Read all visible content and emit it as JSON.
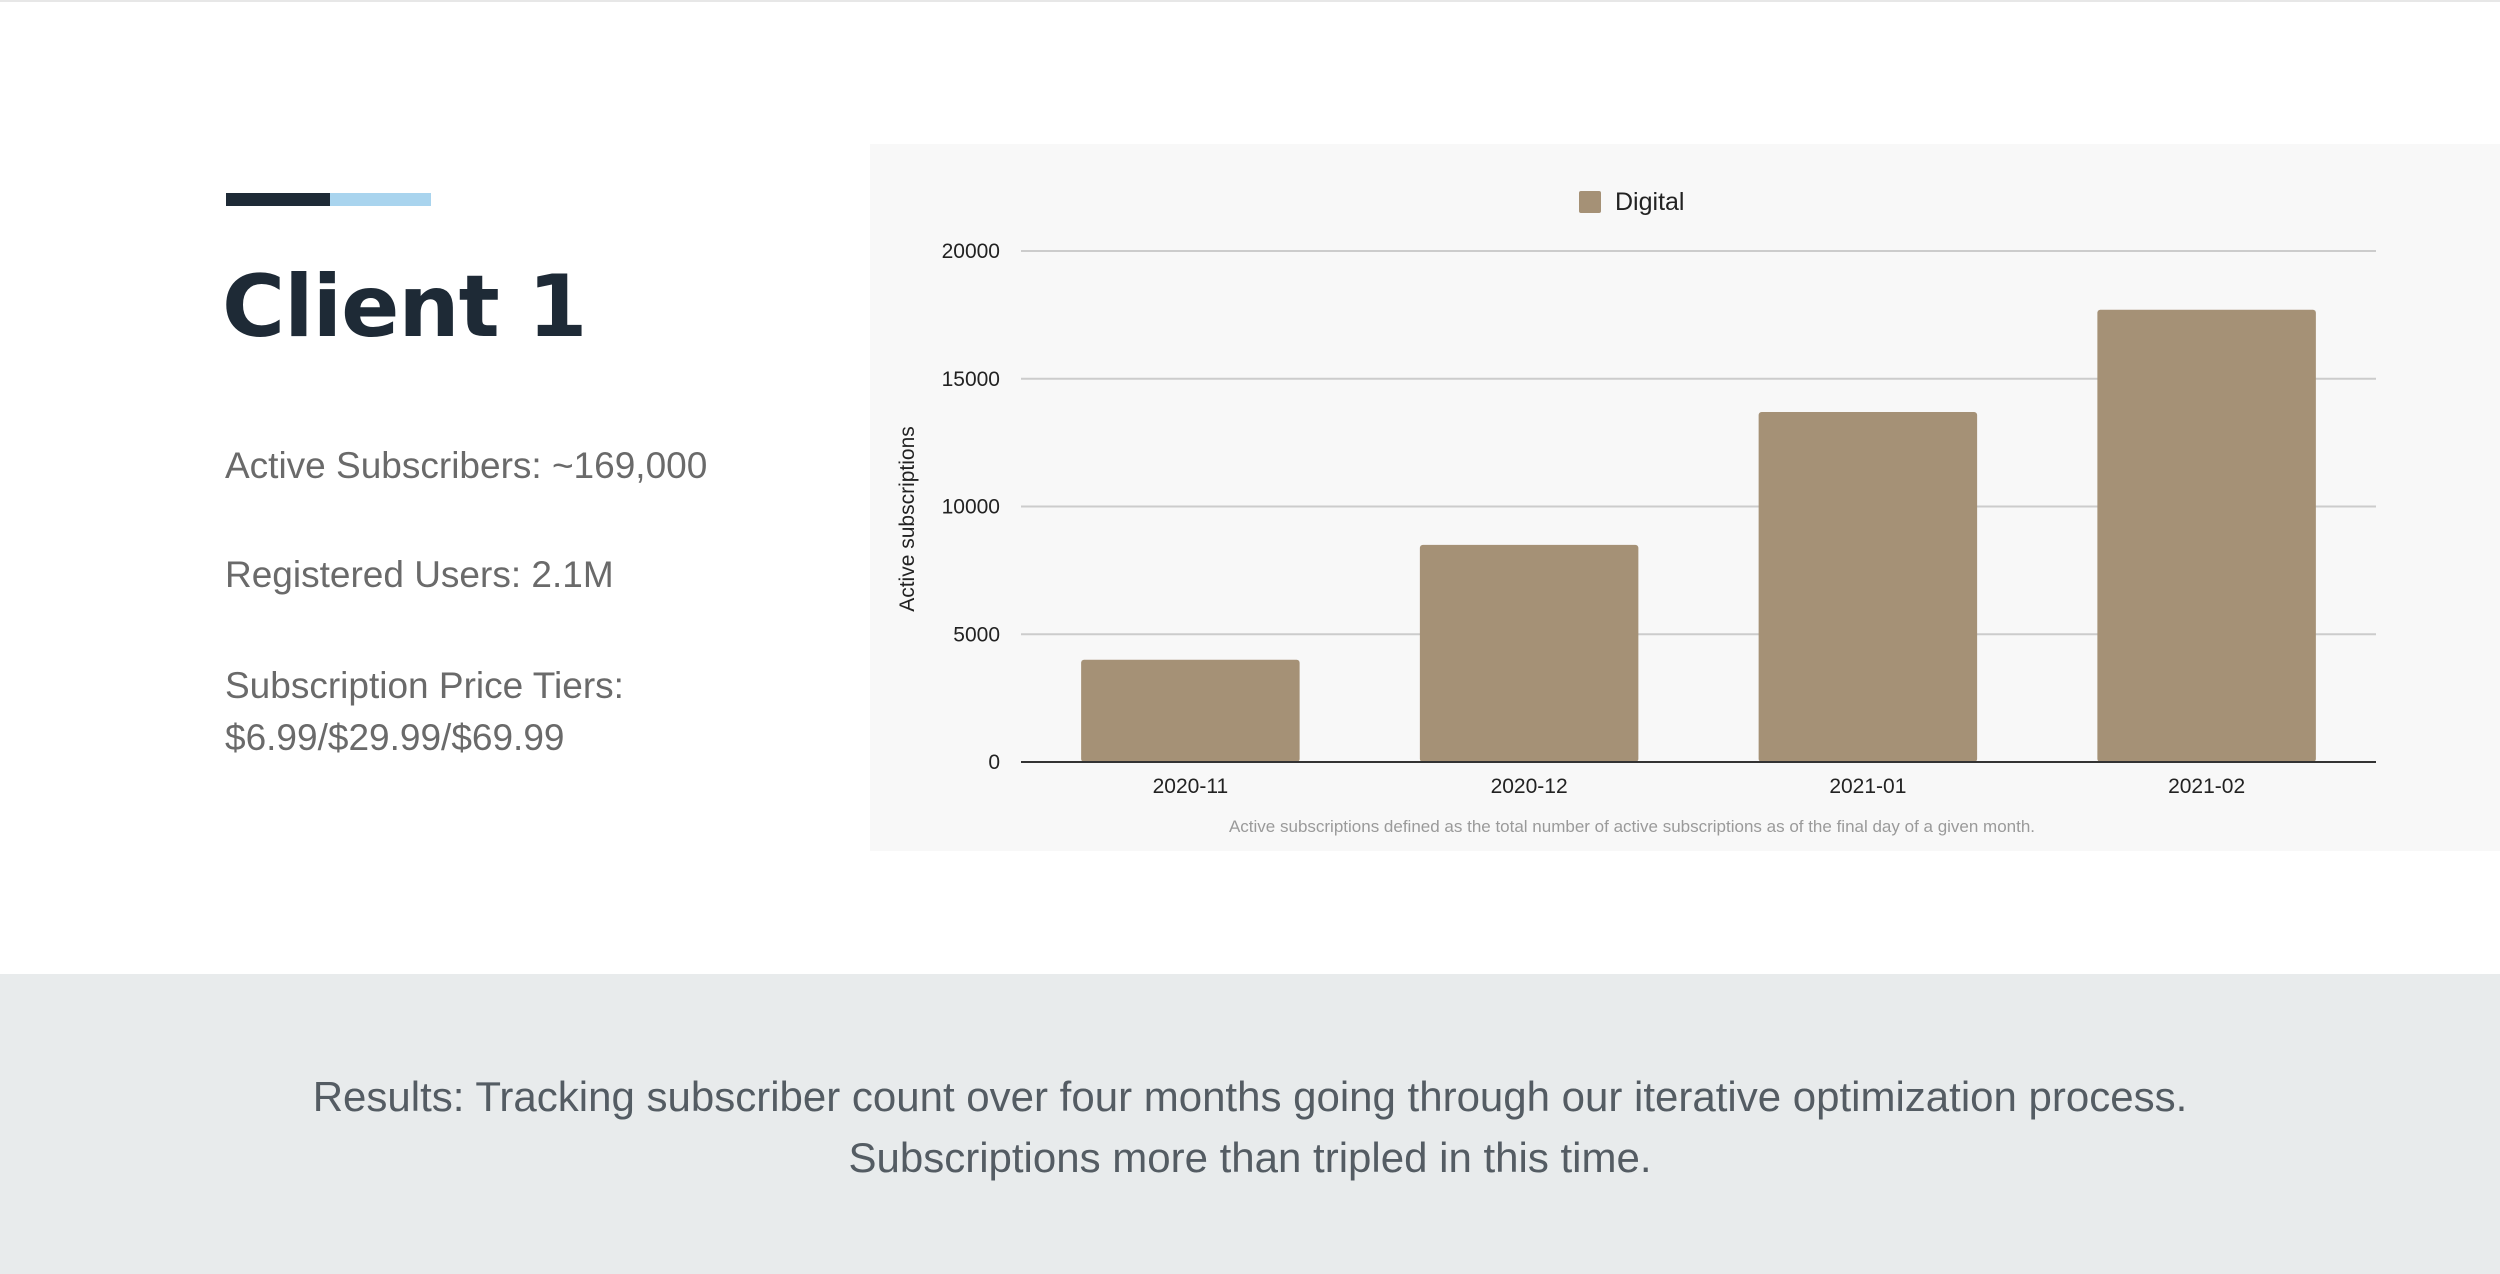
{
  "client": {
    "title": "Client 1",
    "active_subscribers": "Active Subscribers: ~169,000",
    "registered_users": "Registered Users: 2.1M",
    "price_tiers_line1": "Subscription Price Tiers:",
    "price_tiers_line2": "$6.99/$29.99/$69.99"
  },
  "accent": {
    "dark": "#1e2a36",
    "light": "#a9d4ee"
  },
  "chart_data": {
    "type": "bar",
    "categories": [
      "2020-11",
      "2020-12",
      "2021-01",
      "2021-02"
    ],
    "series": [
      {
        "name": "Digital",
        "values": [
          4000,
          8500,
          13700,
          17700
        ],
        "color": "#a59176"
      }
    ],
    "ylabel": "Active subscriptions",
    "xlabel": "",
    "ylim": [
      0,
      20000
    ],
    "yticks": [
      0,
      5000,
      10000,
      15000,
      20000
    ],
    "grid": true,
    "legend": "top-center",
    "note": "Active subscriptions defined as the total number of active subscriptions as of the final day of a given month."
  },
  "results": {
    "text": "Results: Tracking subscriber count over four months going through our iterative optimization process. Subscriptions more than tripled in this time."
  }
}
